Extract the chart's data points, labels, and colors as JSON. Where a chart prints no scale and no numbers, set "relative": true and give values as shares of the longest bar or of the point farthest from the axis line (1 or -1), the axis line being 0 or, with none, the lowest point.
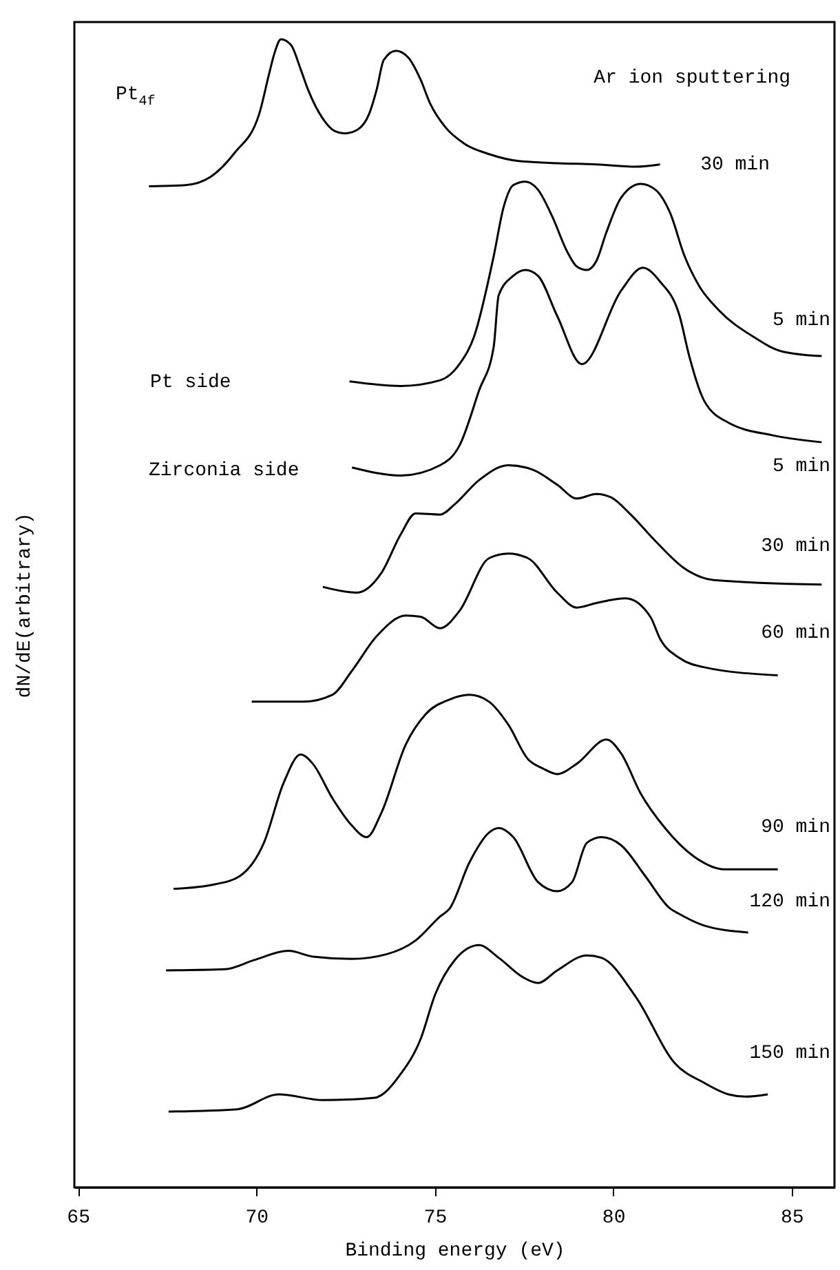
{
  "chart_data": {
    "type": "line",
    "relative": true,
    "xlabel": "Binding energy (eV)",
    "ylabel": "dN/dE(arbitrary)",
    "xlim": [
      64.9,
      86.2
    ],
    "xticks": [
      65,
      70,
      75,
      80,
      85
    ],
    "line_style": "solid",
    "annotations": [
      "Pt$_{4f}$",
      "Ar ion sputtering",
      "Pt side",
      "Zirconia side"
    ],
    "series": [
      {
        "name": "30 min",
        "color": "#000000",
        "x": [
          66.99,
          68.02,
          68.71,
          69.39,
          70.08,
          70.35,
          70.49,
          70.69,
          70.97,
          71.24,
          71.45,
          71.86,
          72.2,
          72.47,
          72.82,
          73.16,
          73.37,
          73.57,
          73.91,
          74.26,
          74.6,
          74.87,
          75.28,
          75.83,
          76.52,
          77.34,
          78.44,
          79.53,
          80.63,
          81.31
        ],
        "values": [
          0.872,
          0.873,
          0.88,
          0.901,
          0.935,
          0.969,
          0.986,
          1.0,
          0.995,
          0.974,
          0.956,
          0.931,
          0.92,
          0.918,
          0.921,
          0.935,
          0.956,
          0.982,
          0.99,
          0.984,
          0.965,
          0.944,
          0.924,
          0.909,
          0.9,
          0.894,
          0.892,
          0.891,
          0.889,
          0.891
        ]
      },
      {
        "name": "5 min",
        "color": "#000000",
        "x": [
          72.61,
          74.05,
          75.15,
          75.69,
          76.1,
          76.65,
          76.93,
          77.2,
          77.54,
          77.89,
          78.3,
          78.71,
          78.98,
          79.26,
          79.53,
          79.81,
          80.22,
          80.77,
          81.18,
          81.59,
          82.0,
          82.41,
          82.96,
          83.92,
          84.74,
          85.84
        ],
        "values": [
          0.702,
          0.698,
          0.703,
          0.717,
          0.741,
          0.811,
          0.854,
          0.873,
          0.876,
          0.869,
          0.845,
          0.815,
          0.802,
          0.799,
          0.807,
          0.832,
          0.862,
          0.874,
          0.869,
          0.849,
          0.811,
          0.785,
          0.764,
          0.741,
          0.728,
          0.724
        ]
      },
      {
        "name": "5 min",
        "color": "#000000",
        "x": [
          72.68,
          74.05,
          75.15,
          75.69,
          76.24,
          76.65,
          76.79,
          77.2,
          77.54,
          77.89,
          78.43,
          79.12,
          80.22,
          80.83,
          81.31,
          81.86,
          82.13,
          82.55,
          83.23,
          84.47,
          85.84
        ],
        "values": [
          0.627,
          0.62,
          0.629,
          0.646,
          0.694,
          0.732,
          0.777,
          0.794,
          0.799,
          0.794,
          0.759,
          0.717,
          0.781,
          0.801,
          0.789,
          0.759,
          0.724,
          0.685,
          0.666,
          0.655,
          0.649
        ]
      },
      {
        "name": "30 min",
        "color": "#000000",
        "x": [
          71.86,
          72.82,
          73.5,
          74.05,
          74.46,
          75.15,
          75.56,
          76.24,
          77.06,
          77.75,
          78.43,
          78.98,
          79.53,
          79.94,
          80.49,
          81.18,
          82.0,
          82.82,
          85.84
        ],
        "values": [
          0.523,
          0.518,
          0.535,
          0.569,
          0.587,
          0.586,
          0.595,
          0.616,
          0.629,
          0.625,
          0.612,
          0.6,
          0.604,
          0.601,
          0.586,
          0.563,
          0.539,
          0.529,
          0.525
        ]
      },
      {
        "name": "60 min",
        "color": "#000000",
        "x": [
          69.87,
          71.31,
          72.13,
          72.68,
          73.37,
          74.19,
          74.6,
          75.15,
          75.69,
          76.52,
          77.06,
          77.61,
          78.43,
          78.98,
          79.53,
          80.35,
          81.04,
          81.31,
          81.86,
          82.55,
          84.61
        ],
        "values": [
          0.423,
          0.423,
          0.429,
          0.45,
          0.48,
          0.498,
          0.497,
          0.487,
          0.502,
          0.548,
          0.552,
          0.548,
          0.518,
          0.505,
          0.509,
          0.513,
          0.497,
          0.478,
          0.461,
          0.453,
          0.446
        ]
      },
      {
        "name": "90 min",
        "color": "#000000",
        "x": [
          67.68,
          68.84,
          69.53,
          70.21,
          70.76,
          71.24,
          71.58,
          72.13,
          72.68,
          73.09,
          73.5,
          74.19,
          74.74,
          75.42,
          75.97,
          76.52,
          77.06,
          77.61,
          78.02,
          78.43,
          78.98,
          79.81,
          80.22,
          80.77,
          81.45,
          82.27,
          83.1,
          84.61
        ],
        "values": [
          0.26,
          0.264,
          0.271,
          0.3,
          0.352,
          0.377,
          0.369,
          0.339,
          0.315,
          0.305,
          0.326,
          0.386,
          0.412,
          0.425,
          0.429,
          0.423,
          0.403,
          0.373,
          0.365,
          0.36,
          0.369,
          0.39,
          0.378,
          0.343,
          0.313,
          0.288,
          0.277,
          0.277
        ]
      },
      {
        "name": "120 min",
        "color": "#000000",
        "x": [
          67.47,
          69.12,
          69.94,
          70.9,
          71.58,
          72.68,
          73.64,
          74.46,
          75.15,
          75.42,
          75.97,
          76.52,
          76.79,
          77.2,
          77.89,
          78.43,
          78.85,
          79.26,
          79.67,
          80.22,
          80.9,
          81.59,
          81.86,
          82.55,
          83.78
        ],
        "values": [
          0.189,
          0.19,
          0.198,
          0.206,
          0.201,
          0.199,
          0.203,
          0.215,
          0.236,
          0.243,
          0.283,
          0.309,
          0.313,
          0.305,
          0.266,
          0.258,
          0.266,
          0.3,
          0.305,
          0.298,
          0.271,
          0.243,
          0.238,
          0.228,
          0.222
        ]
      },
      {
        "name": "150 min",
        "color": "#000000",
        "x": [
          67.54,
          69.46,
          70.63,
          71.86,
          73.3,
          74.05,
          74.6,
          75.01,
          75.56,
          76.24,
          76.79,
          77.47,
          77.89,
          78.43,
          79.26,
          79.67,
          80.63,
          81.73,
          82.55,
          83.23,
          83.71,
          84.33
        ],
        "values": [
          0.066,
          0.068,
          0.081,
          0.076,
          0.078,
          0.099,
          0.129,
          0.168,
          0.198,
          0.211,
          0.2,
          0.183,
          0.178,
          0.189,
          0.202,
          0.2,
          0.166,
          0.108,
          0.091,
          0.081,
          0.079,
          0.081
        ]
      }
    ]
  }
}
